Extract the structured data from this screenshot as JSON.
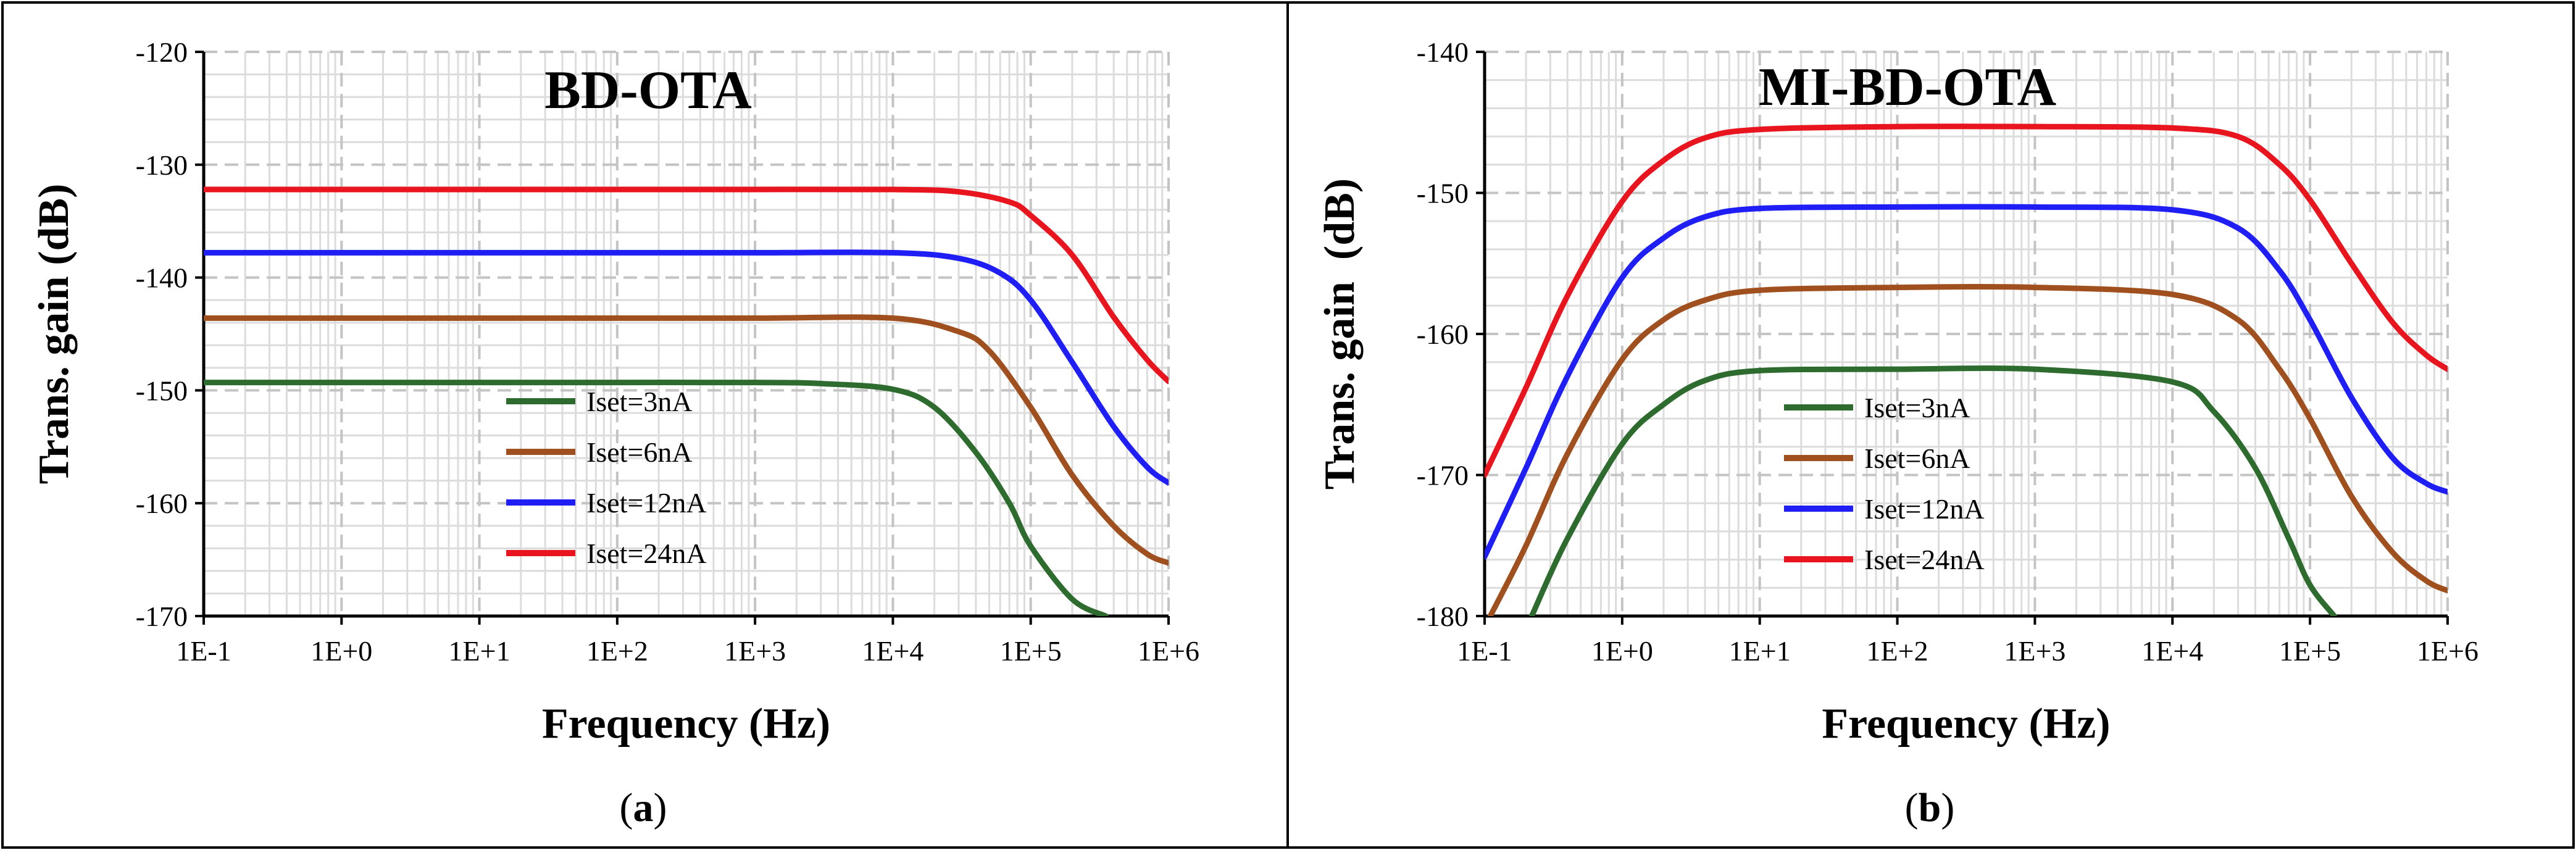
{
  "captions": [
    "a",
    "b"
  ],
  "chart_data": [
    {
      "type": "line",
      "title": "BD-OTA",
      "xlabel": "Frequency (Hz)",
      "ylabel": "Trans. gain (dB)",
      "xscale": "log",
      "xlim": [
        0.1,
        1000000
      ],
      "ylim": [
        -170,
        -120
      ],
      "xticks": [
        0.1,
        1,
        10,
        100,
        1000,
        10000,
        100000,
        1000000
      ],
      "xtick_labels": [
        "1E-1",
        "1E+0",
        "1E+1",
        "1E+2",
        "1E+3",
        "1E+4",
        "1E+5",
        "1E+6"
      ],
      "yticks": [
        -120,
        -130,
        -140,
        -150,
        -160,
        -170
      ],
      "ytick_labels": [
        "-120",
        "-130",
        "-140",
        "-150",
        "-160",
        "-170"
      ],
      "grid": true,
      "legend_position": "center-bottom",
      "series": [
        {
          "name": "Iset=3nA",
          "color": "#2e6b2e",
          "x": [
            0.1,
            1,
            10,
            100,
            1000,
            3000,
            10000,
            20000,
            40000,
            70000,
            100000,
            200000,
            350000
          ],
          "y": [
            -149.3,
            -149.3,
            -149.3,
            -149.3,
            -149.3,
            -149.4,
            -149.9,
            -151.5,
            -155.5,
            -160,
            -163.8,
            -168.5,
            -170
          ]
        },
        {
          "name": "Iset=6nA",
          "color": "#a0501e",
          "x": [
            0.1,
            1,
            10,
            100,
            1000,
            10000,
            30000,
            50000,
            100000,
            200000,
            400000,
            700000,
            1000000
          ],
          "y": [
            -143.6,
            -143.6,
            -143.6,
            -143.6,
            -143.6,
            -143.6,
            -144.8,
            -146.5,
            -151.5,
            -157.5,
            -162,
            -164.5,
            -165.3
          ]
        },
        {
          "name": "Iset=12nA",
          "color": "#1f1ff5",
          "x": [
            0.1,
            1,
            10,
            100,
            1000,
            10000,
            30000,
            60000,
            100000,
            200000,
            400000,
            700000,
            1000000
          ],
          "y": [
            -137.8,
            -137.8,
            -137.8,
            -137.8,
            -137.8,
            -137.8,
            -138.3,
            -139.6,
            -142,
            -147.5,
            -153.2,
            -156.8,
            -158.2
          ]
        },
        {
          "name": "Iset=24nA",
          "color": "#e8141e",
          "x": [
            0.1,
            1,
            10,
            100,
            1000,
            10000,
            30000,
            70000,
            100000,
            200000,
            400000,
            700000,
            1000000
          ],
          "y": [
            -132.2,
            -132.2,
            -132.2,
            -132.2,
            -132.2,
            -132.2,
            -132.4,
            -133.3,
            -134.5,
            -138,
            -143.5,
            -147.3,
            -149.2
          ]
        }
      ]
    },
    {
      "type": "line",
      "title": "MI-BD-OTA",
      "xlabel": "Frequency (Hz)",
      "ylabel": "Trans. gain  (dB)",
      "xscale": "log",
      "xlim": [
        0.1,
        1000000
      ],
      "ylim": [
        -180,
        -140
      ],
      "xticks": [
        0.1,
        1,
        10,
        100,
        1000,
        10000,
        100000,
        1000000
      ],
      "xtick_labels": [
        "1E-1",
        "1E+0",
        "1E+1",
        "1E+2",
        "1E+3",
        "1E+4",
        "1E+5",
        "1E+6"
      ],
      "yticks": [
        -140,
        -150,
        -160,
        -170,
        -180
      ],
      "ytick_labels": [
        "-140",
        "-150",
        "-160",
        "-170",
        "-180"
      ],
      "grid": true,
      "legend_position": "center-bottom",
      "series": [
        {
          "name": "Iset=3nA",
          "color": "#2e6b2e",
          "x": [
            0.22,
            0.4,
            1,
            2,
            4,
            10,
            100,
            1000,
            10000,
            20000,
            40000,
            70000,
            100000,
            150000
          ],
          "y": [
            -180,
            -174.5,
            -167.8,
            -165,
            -163.3,
            -162.6,
            -162.5,
            -162.5,
            -163.4,
            -165.5,
            -169.5,
            -174.5,
            -177.8,
            -180
          ]
        },
        {
          "name": "Iset=6nA",
          "color": "#a0501e",
          "x": [
            0.11,
            0.2,
            0.4,
            1,
            2,
            4,
            10,
            100,
            1000,
            10000,
            30000,
            60000,
            100000,
            200000,
            400000,
            700000,
            1000000
          ],
          "y": [
            -180,
            -175,
            -168.5,
            -161.8,
            -159,
            -157.6,
            -156.9,
            -156.7,
            -156.7,
            -157.2,
            -159,
            -162.5,
            -166,
            -171.5,
            -175.5,
            -177.5,
            -178.2
          ]
        },
        {
          "name": "Iset=12nA",
          "color": "#1f1ff5",
          "x": [
            0.1,
            0.2,
            0.4,
            1,
            2,
            4,
            10,
            100,
            1000,
            10000,
            30000,
            60000,
            100000,
            200000,
            400000,
            700000,
            1000000
          ],
          "y": [
            -175.8,
            -169.5,
            -163,
            -156,
            -153.2,
            -151.7,
            -151.1,
            -151,
            -151,
            -151.2,
            -152.5,
            -155.5,
            -159,
            -164.5,
            -168.8,
            -170.6,
            -171.2
          ]
        },
        {
          "name": "Iset=24nA",
          "color": "#e8141e",
          "x": [
            0.1,
            0.2,
            0.4,
            1,
            2,
            4,
            10,
            100,
            1000,
            10000,
            30000,
            60000,
            100000,
            200000,
            400000,
            700000,
            1000000
          ],
          "y": [
            -170,
            -163.8,
            -157.3,
            -150.6,
            -147.7,
            -146.1,
            -145.5,
            -145.3,
            -145.3,
            -145.4,
            -146,
            -148,
            -150.5,
            -155,
            -159.2,
            -161.5,
            -162.5
          ]
        }
      ]
    }
  ]
}
